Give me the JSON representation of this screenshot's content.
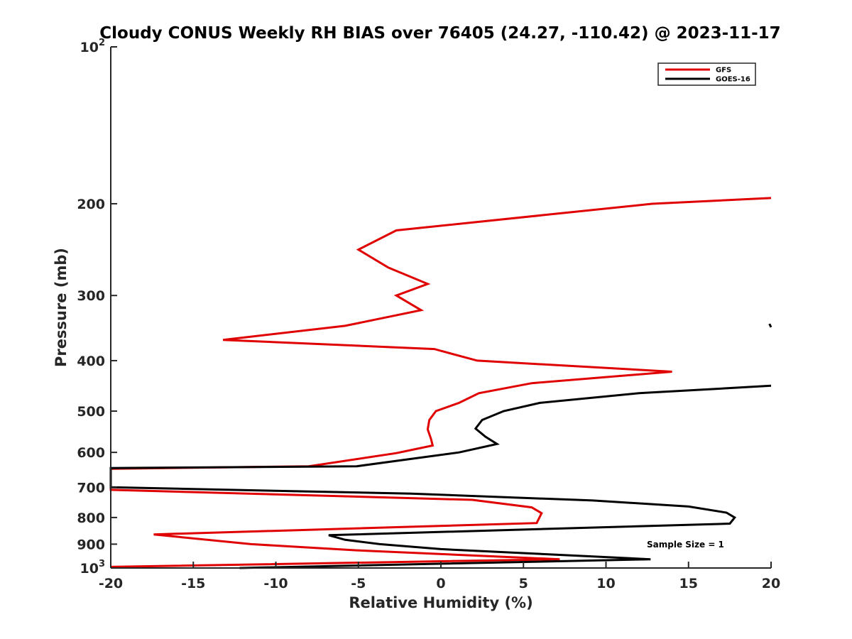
{
  "chart_data": {
    "type": "line",
    "title": "Cloudy CONUS Weekly RH BIAS over 76405 (24.27, -110.42) @ 2023-11-17",
    "xlabel": "Relative Humidity (%)",
    "ylabel": "Pressure (mb)",
    "xlim": [
      -20,
      20
    ],
    "ylim": [
      100,
      1000
    ],
    "y_scale": "log",
    "y_reversed": true,
    "x_ticks": [
      "-20",
      "-15",
      "-10",
      "-5",
      "0",
      "5",
      "10",
      "15",
      "20"
    ],
    "y_ticks": [
      {
        "value": 100,
        "base": "10",
        "exp": "2"
      },
      {
        "value": 200,
        "label": "200"
      },
      {
        "value": 300,
        "label": "300"
      },
      {
        "value": 400,
        "label": "400"
      },
      {
        "value": 500,
        "label": "500"
      },
      {
        "value": 600,
        "label": "600"
      },
      {
        "value": 700,
        "label": "700"
      },
      {
        "value": 800,
        "label": "800"
      },
      {
        "value": 900,
        "label": "900"
      },
      {
        "value": 1000,
        "base": "10",
        "exp": "3"
      }
    ],
    "grid": false,
    "legend_position": "top-right",
    "annotation": "Sample Size = 1",
    "series": [
      {
        "name": "GFS",
        "color": "#e00000",
        "points": [
          [
            20,
            195
          ],
          [
            12.8,
            200
          ],
          [
            -2.7,
            225
          ],
          [
            -5,
            245
          ],
          [
            -3.2,
            265
          ],
          [
            -0.8,
            285
          ],
          [
            -2.7,
            300
          ],
          [
            -1.2,
            320
          ],
          [
            -5.8,
            343
          ],
          [
            -13.2,
            365
          ],
          [
            -0.4,
            380
          ],
          [
            2.2,
            400
          ],
          [
            14,
            420
          ],
          [
            5.5,
            442
          ],
          [
            2.3,
            462
          ],
          [
            1.1,
            482
          ],
          [
            -0.3,
            500
          ],
          [
            -0.7,
            520
          ],
          [
            -0.8,
            542
          ],
          [
            -0.6,
            565
          ],
          [
            -0.5,
            582
          ],
          [
            -2.7,
            602
          ],
          [
            -8,
            638
          ],
          [
            -20,
            645
          ],
          [
            -20,
            708
          ],
          [
            1.9,
            740
          ],
          [
            5.5,
            765
          ],
          [
            6.1,
            785
          ],
          [
            5.8,
            820
          ],
          [
            -17.4,
            862
          ],
          [
            -11.5,
            900
          ],
          [
            -5.1,
            925
          ],
          [
            7.2,
            962
          ],
          [
            -20,
            995
          ]
        ]
      },
      {
        "name": "GOES-16",
        "color": "#000000",
        "points": [
          [
            20,
            447
          ],
          [
            12,
            462
          ],
          [
            6,
            482
          ],
          [
            3.8,
            500
          ],
          [
            2.5,
            520
          ],
          [
            2.1,
            540
          ],
          [
            2.7,
            560
          ],
          [
            3.4,
            578
          ],
          [
            1.1,
            600
          ],
          [
            -5.1,
            638
          ],
          [
            -20,
            643
          ],
          [
            -20,
            700
          ],
          [
            -1.8,
            720
          ],
          [
            9.2,
            742
          ],
          [
            15,
            762
          ],
          [
            17.3,
            783
          ],
          [
            17.8,
            800
          ],
          [
            17.5,
            822
          ],
          [
            -6.8,
            865
          ],
          [
            -5.8,
            883
          ],
          [
            -3.7,
            900
          ],
          [
            0,
            920
          ],
          [
            12.7,
            962
          ],
          [
            -12.2,
            1000
          ]
        ],
        "extra_segment": [
          [
            19.9,
            340
          ],
          [
            20,
            345
          ]
        ]
      }
    ]
  }
}
